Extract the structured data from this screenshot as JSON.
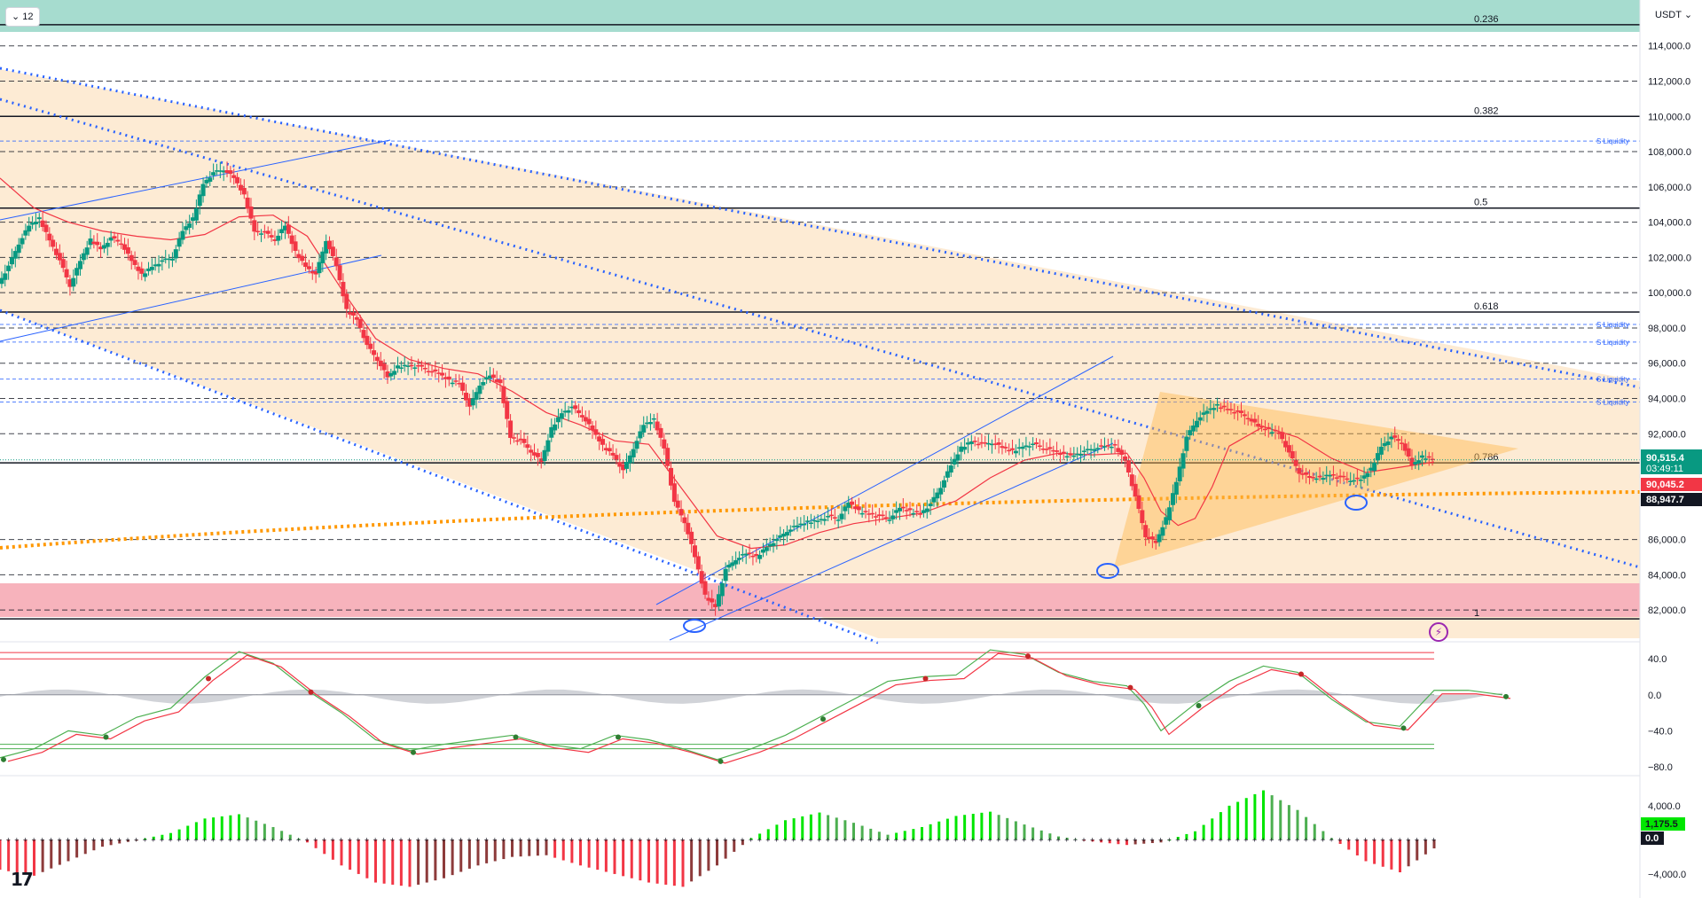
{
  "toolbar": {
    "interval_label": "12",
    "currency_label": "USDT",
    "logo_text": "17"
  },
  "price_axis": {
    "ticks": [
      "114,000.0",
      "112,000.0",
      "110,000.0",
      "108,000.0",
      "106,000.0",
      "104,000.0",
      "102,000.0",
      "100,000.0",
      "98,000.0",
      "96,000.0",
      "94,000.0",
      "92,000.0",
      "86,000.0",
      "84,000.0",
      "82,000.0"
    ],
    "current_price": "90,515.4",
    "countdown": "03:49:11",
    "ma_value": "90,045.2",
    "line_value": "88,947.7"
  },
  "fib_labels": [
    "0.236",
    "0.382",
    "0.5",
    "0.618",
    "0.786",
    "1"
  ],
  "liquidity_labels": [
    "S Liquidity",
    "S Liquidity",
    "S Liquidity",
    "S Liquidity",
    "S Liquidity"
  ],
  "osc_axis": {
    "ticks": [
      "40.0",
      "0.0",
      "−40.0",
      "−80.0"
    ]
  },
  "macd_axis": {
    "ticks": [
      "4,000.0",
      "−4,000.0"
    ],
    "current_value": "1,175.5",
    "zero_value": "0.0"
  },
  "colors": {
    "up": "#089981",
    "down": "#f23645",
    "channel": "#2962ff",
    "trend_dotted": "#2962ff",
    "support_dotted": "#ff9800",
    "zone_fill": "#fde9cf",
    "top_zone": "#a6dccf",
    "bottom_zone": "#f7b3bc",
    "triangle": "#ffb74d",
    "ma": "#f23645",
    "ma_green": "#4caf50",
    "current_price": "#089981",
    "ma_price": "#f23645"
  },
  "chart_data": [
    {
      "type": "candlestick",
      "title": "",
      "y_unit": "USDT",
      "ylim": [
        80400,
        116600
      ],
      "price_levels": [
        114000,
        112000,
        110000,
        108000,
        106000,
        104000,
        102000,
        100000,
        98000,
        96000,
        94000,
        92000,
        86000,
        84000,
        82000
      ],
      "fib_levels": [
        {
          "label": "0.236",
          "price": 115200
        },
        {
          "label": "0.382",
          "price": 110000
        },
        {
          "label": "0.5",
          "price": 104800
        },
        {
          "label": "0.618",
          "price": 98900
        },
        {
          "label": "0.786",
          "price": 90350
        },
        {
          "label": "1",
          "price": 81500
        }
      ],
      "liquidity_prices": [
        108600,
        98200,
        97200,
        95100,
        93800
      ],
      "current_price": 90515.4,
      "ma_price": 90045.2,
      "line_price": 88947.7,
      "close_path": [
        [
          0,
          100500
        ],
        [
          6,
          101500
        ],
        [
          12,
          102800
        ],
        [
          18,
          103800
        ],
        [
          24,
          104200
        ],
        [
          30,
          103000
        ],
        [
          36,
          101800
        ],
        [
          42,
          100400
        ],
        [
          48,
          101800
        ],
        [
          54,
          103000
        ],
        [
          60,
          102500
        ],
        [
          66,
          103100
        ],
        [
          72,
          102800
        ],
        [
          78,
          101800
        ],
        [
          84,
          101000
        ],
        [
          90,
          101500
        ],
        [
          96,
          101800
        ],
        [
          102,
          102000
        ],
        [
          108,
          103500
        ],
        [
          114,
          104200
        ],
        [
          120,
          106200
        ],
        [
          126,
          106800
        ],
        [
          132,
          107000
        ],
        [
          138,
          106500
        ],
        [
          144,
          105500
        ],
        [
          150,
          103500
        ],
        [
          156,
          103400
        ],
        [
          162,
          103000
        ],
        [
          168,
          103800
        ],
        [
          174,
          102300
        ],
        [
          180,
          101500
        ],
        [
          186,
          101000
        ],
        [
          192,
          103000
        ],
        [
          198,
          101500
        ],
        [
          204,
          99000
        ],
        [
          210,
          98500
        ],
        [
          216,
          97000
        ],
        [
          222,
          96200
        ],
        [
          228,
          95200
        ],
        [
          234,
          95800
        ],
        [
          240,
          95900
        ],
        [
          246,
          95800
        ],
        [
          252,
          95600
        ],
        [
          258,
          95400
        ],
        [
          264,
          95000
        ],
        [
          270,
          94900
        ],
        [
          276,
          93500
        ],
        [
          282,
          94800
        ],
        [
          288,
          95300
        ],
        [
          294,
          94800
        ],
        [
          300,
          91800
        ],
        [
          306,
          91600
        ],
        [
          312,
          91000
        ],
        [
          318,
          90400
        ],
        [
          324,
          92300
        ],
        [
          330,
          93200
        ],
        [
          336,
          93500
        ],
        [
          342,
          93000
        ],
        [
          348,
          92200
        ],
        [
          354,
          91300
        ],
        [
          360,
          90800
        ],
        [
          366,
          89900
        ],
        [
          372,
          91200
        ],
        [
          378,
          92500
        ],
        [
          384,
          92800
        ],
        [
          390,
          91200
        ],
        [
          396,
          88100
        ],
        [
          402,
          87000
        ],
        [
          408,
          85000
        ],
        [
          414,
          82800
        ],
        [
          420,
          82200
        ],
        [
          426,
          84300
        ],
        [
          432,
          84900
        ],
        [
          438,
          85200
        ],
        [
          444,
          85000
        ],
        [
          450,
          85600
        ],
        [
          456,
          86000
        ],
        [
          462,
          86500
        ],
        [
          468,
          86800
        ],
        [
          474,
          87000
        ],
        [
          480,
          87100
        ],
        [
          486,
          87300
        ],
        [
          492,
          87200
        ],
        [
          498,
          88100
        ],
        [
          504,
          87600
        ],
        [
          510,
          87500
        ],
        [
          516,
          87300
        ],
        [
          522,
          87200
        ],
        [
          528,
          87800
        ],
        [
          534,
          87600
        ],
        [
          540,
          87500
        ],
        [
          546,
          88000
        ],
        [
          552,
          89000
        ],
        [
          558,
          90200
        ],
        [
          564,
          91200
        ],
        [
          570,
          91600
        ],
        [
          576,
          91400
        ],
        [
          582,
          91500
        ],
        [
          588,
          91200
        ],
        [
          594,
          91000
        ],
        [
          600,
          91300
        ],
        [
          606,
          91400
        ],
        [
          612,
          91200
        ],
        [
          618,
          91000
        ],
        [
          624,
          90800
        ],
        [
          630,
          90800
        ],
        [
          636,
          91000
        ],
        [
          642,
          91200
        ],
        [
          648,
          91300
        ],
        [
          654,
          91300
        ],
        [
          660,
          90500
        ],
        [
          666,
          88400
        ],
        [
          672,
          86200
        ],
        [
          678,
          85800
        ],
        [
          684,
          87200
        ],
        [
          690,
          89300
        ],
        [
          696,
          91800
        ],
        [
          702,
          92800
        ],
        [
          708,
          93300
        ],
        [
          714,
          93600
        ],
        [
          720,
          93400
        ],
        [
          726,
          93200
        ],
        [
          732,
          92900
        ],
        [
          738,
          92400
        ],
        [
          744,
          92200
        ],
        [
          750,
          92100
        ],
        [
          756,
          90900
        ],
        [
          762,
          89800
        ],
        [
          768,
          89500
        ],
        [
          774,
          89500
        ],
        [
          780,
          89700
        ],
        [
          786,
          89500
        ],
        [
          792,
          89400
        ],
        [
          798,
          89400
        ],
        [
          804,
          90000
        ],
        [
          810,
          91300
        ],
        [
          816,
          91800
        ],
        [
          822,
          91500
        ],
        [
          828,
          90200
        ],
        [
          834,
          90700
        ],
        [
          840,
          90600
        ]
      ],
      "ma_path": [
        [
          0,
          106500
        ],
        [
          20,
          104800
        ],
        [
          40,
          104000
        ],
        [
          60,
          103500
        ],
        [
          80,
          103200
        ],
        [
          100,
          103000
        ],
        [
          120,
          103300
        ],
        [
          140,
          104300
        ],
        [
          160,
          104400
        ],
        [
          180,
          103200
        ],
        [
          200,
          100200
        ],
        [
          220,
          97400
        ],
        [
          240,
          96200
        ],
        [
          260,
          95700
        ],
        [
          280,
          95400
        ],
        [
          300,
          94400
        ],
        [
          320,
          93200
        ],
        [
          340,
          92500
        ],
        [
          360,
          91600
        ],
        [
          380,
          91400
        ],
        [
          400,
          88800
        ],
        [
          420,
          86200
        ],
        [
          440,
          85500
        ],
        [
          460,
          85700
        ],
        [
          480,
          86400
        ],
        [
          500,
          86900
        ],
        [
          520,
          87200
        ],
        [
          540,
          87500
        ],
        [
          560,
          88200
        ],
        [
          580,
          89500
        ],
        [
          600,
          90500
        ],
        [
          620,
          90900
        ],
        [
          640,
          90800
        ],
        [
          660,
          90900
        ],
        [
          670,
          89500
        ],
        [
          680,
          87600
        ],
        [
          690,
          86800
        ],
        [
          700,
          87200
        ],
        [
          710,
          89000
        ],
        [
          720,
          91300
        ],
        [
          740,
          92400
        ],
        [
          760,
          91800
        ],
        [
          780,
          90600
        ],
        [
          800,
          89800
        ],
        [
          820,
          90100
        ],
        [
          840,
          90400
        ]
      ]
    },
    {
      "type": "line",
      "title": "",
      "ylim": [
        -85,
        55
      ],
      "ticks": [
        40,
        0,
        -40,
        -80
      ],
      "overbought": [
        47,
        40
      ],
      "oversold": [
        -55,
        -60
      ],
      "series_main": [
        [
          0,
          -70
        ],
        [
          20,
          -60
        ],
        [
          40,
          -40
        ],
        [
          60,
          -45
        ],
        [
          80,
          -25
        ],
        [
          100,
          -15
        ],
        [
          120,
          20
        ],
        [
          140,
          48
        ],
        [
          160,
          35
        ],
        [
          180,
          5
        ],
        [
          200,
          -20
        ],
        [
          220,
          -50
        ],
        [
          240,
          -62
        ],
        [
          260,
          -55
        ],
        [
          280,
          -50
        ],
        [
          300,
          -45
        ],
        [
          320,
          -55
        ],
        [
          340,
          -60
        ],
        [
          360,
          -45
        ],
        [
          380,
          -50
        ],
        [
          400,
          -60
        ],
        [
          420,
          -72
        ],
        [
          440,
          -60
        ],
        [
          460,
          -45
        ],
        [
          480,
          -25
        ],
        [
          500,
          -5
        ],
        [
          520,
          15
        ],
        [
          540,
          20
        ],
        [
          560,
          22
        ],
        [
          580,
          50
        ],
        [
          600,
          45
        ],
        [
          620,
          25
        ],
        [
          640,
          15
        ],
        [
          660,
          10
        ],
        [
          670,
          -10
        ],
        [
          680,
          -40
        ],
        [
          700,
          -10
        ],
        [
          720,
          15
        ],
        [
          740,
          32
        ],
        [
          760,
          25
        ],
        [
          780,
          -5
        ],
        [
          800,
          -30
        ],
        [
          820,
          -35
        ],
        [
          840,
          5
        ],
        [
          860,
          5
        ],
        [
          880,
          0
        ]
      ]
    },
    {
      "type": "bar",
      "title": "",
      "ylim": [
        -6500,
        7000
      ],
      "ticks": [
        4000,
        -4000
      ],
      "current_value": 1175.5,
      "histogram": [
        [
          0,
          -3500
        ],
        [
          20,
          -4200
        ],
        [
          40,
          -2500
        ],
        [
          60,
          -800
        ],
        [
          80,
          -50
        ],
        [
          100,
          800
        ],
        [
          120,
          2500
        ],
        [
          140,
          3000
        ],
        [
          160,
          1500
        ],
        [
          180,
          -300
        ],
        [
          200,
          -3000
        ],
        [
          220,
          -5000
        ],
        [
          240,
          -5500
        ],
        [
          260,
          -4500
        ],
        [
          280,
          -3000
        ],
        [
          300,
          -2000
        ],
        [
          320,
          -1800
        ],
        [
          340,
          -3000
        ],
        [
          360,
          -4000
        ],
        [
          380,
          -5000
        ],
        [
          400,
          -5500
        ],
        [
          420,
          -3000
        ],
        [
          440,
          200
        ],
        [
          460,
          2300
        ],
        [
          480,
          3200
        ],
        [
          500,
          2000
        ],
        [
          520,
          600
        ],
        [
          540,
          1500
        ],
        [
          560,
          2800
        ],
        [
          580,
          3300
        ],
        [
          600,
          1800
        ],
        [
          620,
          400
        ],
        [
          640,
          -200
        ],
        [
          660,
          -600
        ],
        [
          680,
          -300
        ],
        [
          700,
          1000
        ],
        [
          720,
          4000
        ],
        [
          740,
          5800
        ],
        [
          760,
          3500
        ],
        [
          780,
          200
        ],
        [
          800,
          -2500
        ],
        [
          820,
          -3800
        ],
        [
          840,
          -1000
        ],
        [
          860,
          600
        ],
        [
          880,
          1200
        ]
      ]
    }
  ]
}
